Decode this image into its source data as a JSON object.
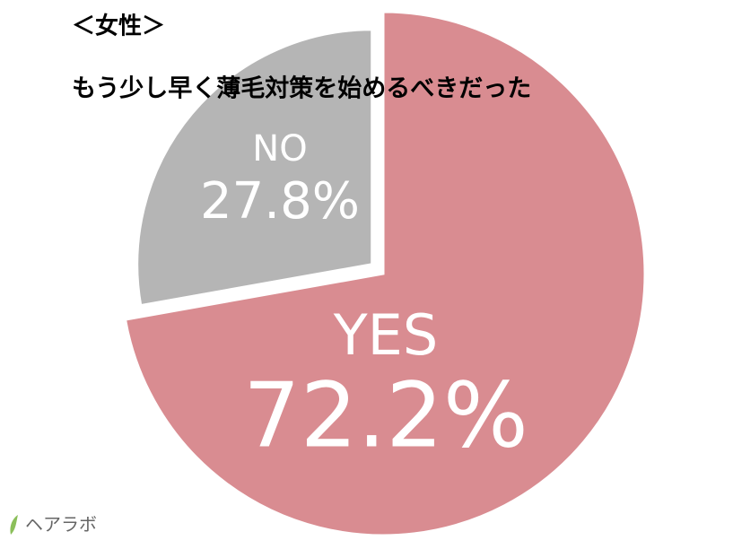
{
  "chart_data": {
    "type": "pie",
    "title": "＜女性＞",
    "subtitle": "もう少し早く薄毛対策を始めるべきだった",
    "categories": [
      "YES",
      "NO"
    ],
    "values": [
      72.2,
      27.8
    ],
    "value_labels": [
      "72.2%",
      "27.8%"
    ],
    "colors": [
      "#d98c91",
      "#b5b5b5"
    ],
    "logo": "ヘアラボ"
  }
}
